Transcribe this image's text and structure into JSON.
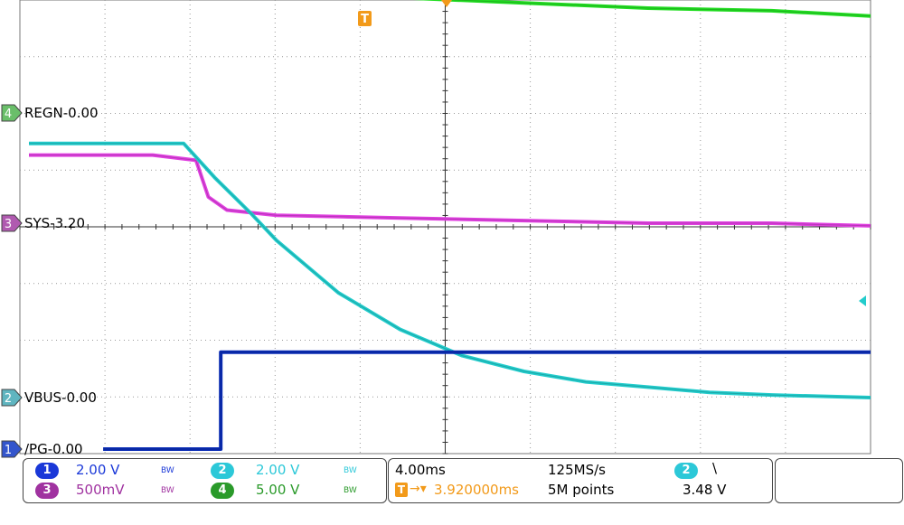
{
  "chart_data": {
    "type": "line",
    "grid": true,
    "series": [
      {
        "name": "REGN",
        "label": "REGN-0.00",
        "channel": "4",
        "color": "#22dd22",
        "marker_color": "#6abf6a",
        "x": [
          0,
          0.5,
          1,
          1.2,
          1.4,
          1.6,
          1.8,
          2.0,
          2.5,
          3,
          4,
          5,
          6,
          6.8
        ],
        "y": [
          2.9,
          2.9,
          2.9,
          2.8,
          2.7,
          2.55,
          2.4,
          2.3,
          2.25,
          2.2,
          2.1,
          2.0,
          1.95,
          1.85
        ]
      },
      {
        "name": "SYS",
        "label": "SYS-3.20",
        "channel": "3",
        "color": "#e040e0",
        "marker_color": "#b05ab0",
        "x": [
          0,
          0.5,
          1,
          1.35,
          1.45,
          1.6,
          1.8,
          2.0,
          3,
          4,
          5,
          6,
          6.8
        ],
        "y": [
          1.3,
          1.3,
          1.3,
          1.2,
          0.5,
          0.25,
          0.2,
          0.15,
          0.1,
          0.05,
          0.0,
          0.0,
          -0.05
        ]
      },
      {
        "name": "VBUS",
        "label": "VBUS-0.00",
        "channel": "2",
        "color": "#22cccc",
        "marker_color": "#5fb5c0",
        "x": [
          0,
          0.5,
          1,
          1.25,
          1.5,
          1.8,
          2.0,
          2.5,
          3,
          3.5,
          4,
          4.5,
          5,
          5.5,
          6,
          6.8
        ],
        "y": [
          4.85,
          4.85,
          4.85,
          4.85,
          4.2,
          3.5,
          3.0,
          2.0,
          1.3,
          0.8,
          0.5,
          0.3,
          0.2,
          0.1,
          0.05,
          0.0
        ]
      },
      {
        "name": "/PG",
        "label": "/PG-0.00",
        "channel": "1",
        "color": "#0a2cb5",
        "marker_color": "#3355cc",
        "x": [
          0.6,
          1.55,
          1.55,
          6.8
        ],
        "y": [
          0.0,
          0.0,
          1.85,
          1.85
        ]
      }
    ],
    "trigger_marker": "T"
  },
  "status": {
    "ch1_scale": "2.00 V",
    "ch2_scale": "2.00 V",
    "ch3_scale": "500mV",
    "ch4_scale": "5.00 V",
    "bw": "BW",
    "ch1": "1",
    "ch2": "2",
    "ch3": "3",
    "ch4": "4",
    "timebase": "4.00ms",
    "sample_rate": "125MS/s",
    "trigger_position": "3.920000ms",
    "record_length": "5M points",
    "trigger_channel": "2",
    "trigger_slope": "\\",
    "trigger_level": "3.48 V"
  }
}
